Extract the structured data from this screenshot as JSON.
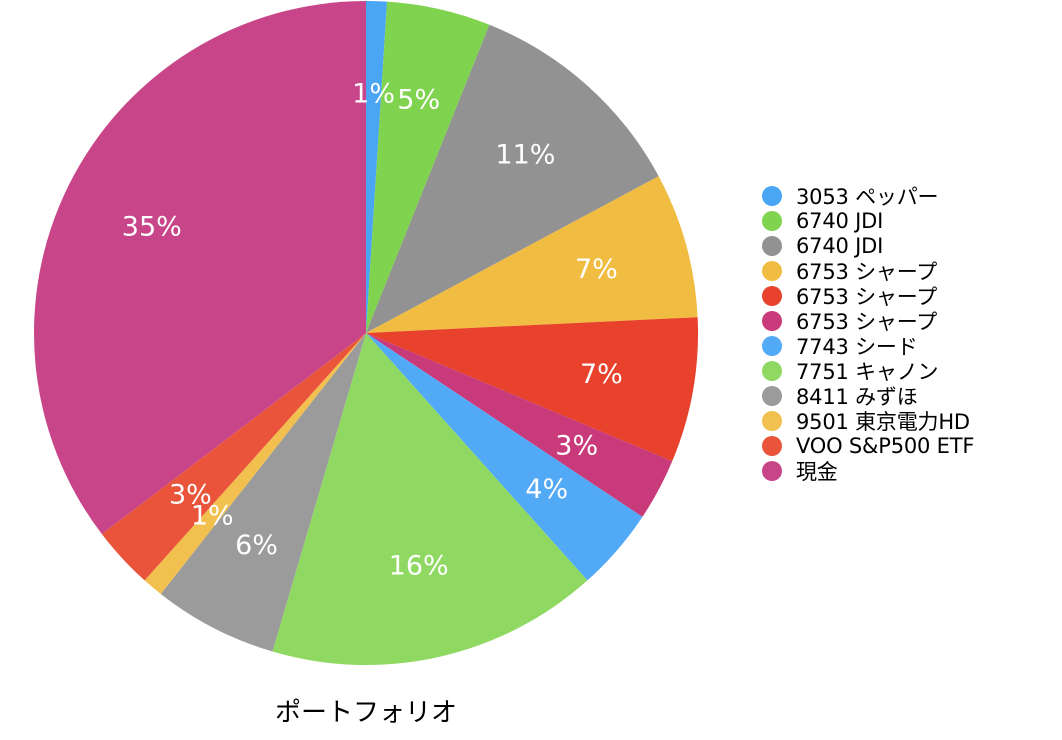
{
  "chart_data": {
    "type": "pie",
    "title": "ポートフォリオ",
    "legend_position": "right",
    "start_angle": "12 o'clock, clockwise",
    "slices": [
      {
        "name": "3053 ペッパー",
        "value": 1,
        "label": "1%",
        "color": "#4aa5f5"
      },
      {
        "name": "6740 JDI",
        "value": 5,
        "label": "5%",
        "color": "#7fd34f"
      },
      {
        "name": "6740 JDI",
        "value": 11,
        "label": "11%",
        "color": "#929292"
      },
      {
        "name": "6753 シャープ",
        "value": 7,
        "label": "7%",
        "color": "#f0bc42"
      },
      {
        "name": "6753 シャープ",
        "value": 7,
        "label": "7%",
        "color": "#e8412c"
      },
      {
        "name": "6753 シャープ",
        "value": 3,
        "label": "3%",
        "color": "#c93a7a"
      },
      {
        "name": "7743 シード",
        "value": 4,
        "label": "4%",
        "color": "#52aaf7"
      },
      {
        "name": "7751 キャノン",
        "value": 16,
        "label": "16%",
        "color": "#8fd962"
      },
      {
        "name": "8411 みずほ",
        "value": 6,
        "label": "6%",
        "color": "#9b9b9b"
      },
      {
        "name": "9501 東京電力HD",
        "value": 1,
        "label": "1%",
        "color": "#f2c04e"
      },
      {
        "name": "VOO S&P500 ETF",
        "value": 3,
        "label": "3%",
        "color": "#e9543a"
      },
      {
        "name": "現金",
        "value": 35,
        "label": "35%",
        "color": "#c8458a"
      }
    ]
  }
}
